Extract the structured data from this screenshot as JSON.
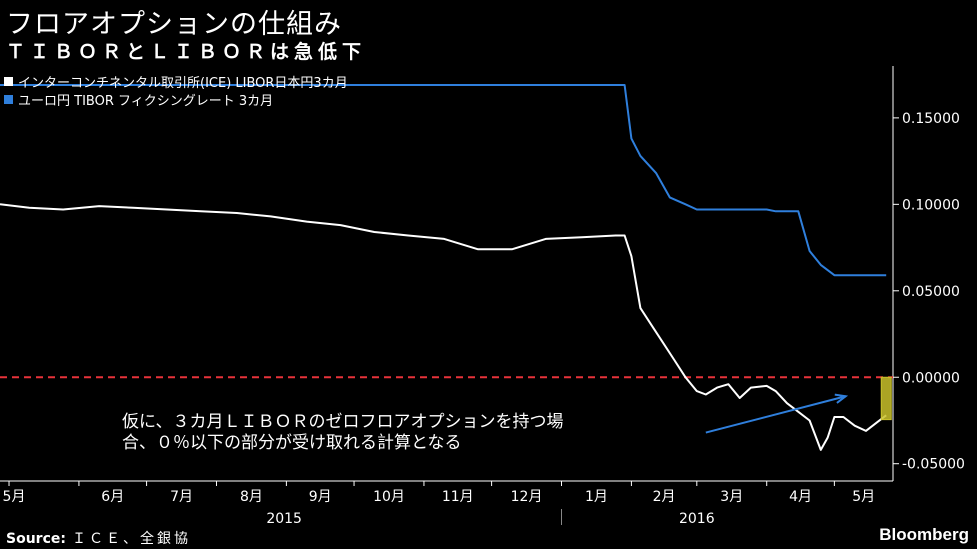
{
  "header": {
    "title": "フロアオプションの仕組み",
    "subtitle": "ＴＩＢＯＲとＬＩＢＯＲは急低下"
  },
  "footer": {
    "source_label": "Source:",
    "source_value": "ＩＣＥ、全銀協",
    "brand": "Bloomberg"
  },
  "annotation": {
    "line1": "仮に、３カ月ＬＩＢＯＲのゼロフロアオプションを持つ場",
    "line2": "合、０％以下の部分が受け取れる計算となる"
  },
  "colors": {
    "background": "#000000",
    "libor": "#ffffff",
    "tibor": "#2f7fdc",
    "zero_line": "#e8333a",
    "highlight": "#c9c12a",
    "arrow": "#2f7fdc"
  },
  "chart_data": {
    "type": "line",
    "ylim": [
      -0.06,
      0.18
    ],
    "yticks": [
      0.15,
      0.1,
      0.05,
      0.0,
      -0.05
    ],
    "ytick_labels": [
      "0.15000",
      "0.10000",
      "0.05000",
      "0.00000",
      "-0.05000"
    ],
    "grid": false,
    "legend_position": "top-left",
    "x_range": [
      "2015-04-27",
      "2016-05-27"
    ],
    "month_ticks": [
      {
        "label": "5月",
        "date": "2015-05-01"
      },
      {
        "label": "6月",
        "date": "2015-06-01"
      },
      {
        "label": "7月",
        "date": "2015-07-01"
      },
      {
        "label": "8月",
        "date": "2015-08-01"
      },
      {
        "label": "9月",
        "date": "2015-09-01"
      },
      {
        "label": "10月",
        "date": "2015-10-01"
      },
      {
        "label": "11月",
        "date": "2015-11-01"
      },
      {
        "label": "12月",
        "date": "2015-12-01"
      },
      {
        "label": "1月",
        "date": "2016-01-01"
      },
      {
        "label": "2月",
        "date": "2016-02-01"
      },
      {
        "label": "3月",
        "date": "2016-03-01"
      },
      {
        "label": "4月",
        "date": "2016-04-01"
      },
      {
        "label": "5月",
        "date": "2016-05-01"
      }
    ],
    "years": [
      {
        "label": "2015",
        "date": "2015-08-31"
      },
      {
        "label": "2016",
        "date": "2016-03-01"
      }
    ],
    "year_divider": "2016-01-01",
    "reference_line": {
      "y": 0.0,
      "style": "dashed"
    },
    "highlight": {
      "x": "2016-05-24",
      "y_top": 0.0,
      "y_bottom": -0.0245
    },
    "arrow": {
      "from": [
        "2016-03-05",
        -0.032
      ],
      "to": [
        "2016-05-06",
        -0.011
      ]
    },
    "series": [
      {
        "name": "インターコンチネンタル取引所(ICE) LIBOR日本円3カ月",
        "x": [
          "2015-04-27",
          "2015-05-10",
          "2015-05-25",
          "2015-06-10",
          "2015-06-25",
          "2015-07-10",
          "2015-07-25",
          "2015-08-10",
          "2015-08-25",
          "2015-09-10",
          "2015-09-25",
          "2015-10-10",
          "2015-10-25",
          "2015-11-10",
          "2015-11-25",
          "2015-12-10",
          "2015-12-25",
          "2016-01-10",
          "2016-01-25",
          "2016-01-29",
          "2016-02-01",
          "2016-02-05",
          "2016-02-10",
          "2016-02-15",
          "2016-02-20",
          "2016-02-25",
          "2016-03-01",
          "2016-03-05",
          "2016-03-10",
          "2016-03-15",
          "2016-03-20",
          "2016-03-25",
          "2016-04-01",
          "2016-04-05",
          "2016-04-10",
          "2016-04-15",
          "2016-04-20",
          "2016-04-25",
          "2016-04-28",
          "2016-05-01",
          "2016-05-05",
          "2016-05-10",
          "2016-05-15",
          "2016-05-20",
          "2016-05-24"
        ],
        "y": [
          0.1,
          0.098,
          0.097,
          0.099,
          0.098,
          0.097,
          0.096,
          0.095,
          0.093,
          0.09,
          0.088,
          0.084,
          0.082,
          0.08,
          0.074,
          0.074,
          0.08,
          0.081,
          0.082,
          0.082,
          0.07,
          0.04,
          0.03,
          0.02,
          0.01,
          0.0,
          -0.008,
          -0.01,
          -0.006,
          -0.004,
          -0.012,
          -0.006,
          -0.005,
          -0.008,
          -0.015,
          -0.02,
          -0.025,
          -0.042,
          -0.035,
          -0.023,
          -0.023,
          -0.028,
          -0.031,
          -0.026,
          -0.022
        ]
      },
      {
        "name": "ユーロ円 TIBOR フィクシングレート 3カ月",
        "x": [
          "2015-04-27",
          "2016-01-29",
          "2016-02-01",
          "2016-02-05",
          "2016-02-12",
          "2016-02-18",
          "2016-02-25",
          "2016-03-01",
          "2016-03-10",
          "2016-03-20",
          "2016-04-01",
          "2016-04-05",
          "2016-04-10",
          "2016-04-15",
          "2016-04-20",
          "2016-04-25",
          "2016-05-01",
          "2016-05-10",
          "2016-05-24"
        ],
        "y": [
          0.169,
          0.169,
          0.138,
          0.128,
          0.118,
          0.104,
          0.1,
          0.097,
          0.097,
          0.097,
          0.097,
          0.096,
          0.096,
          0.096,
          0.073,
          0.065,
          0.059,
          0.059,
          0.059
        ]
      }
    ]
  }
}
